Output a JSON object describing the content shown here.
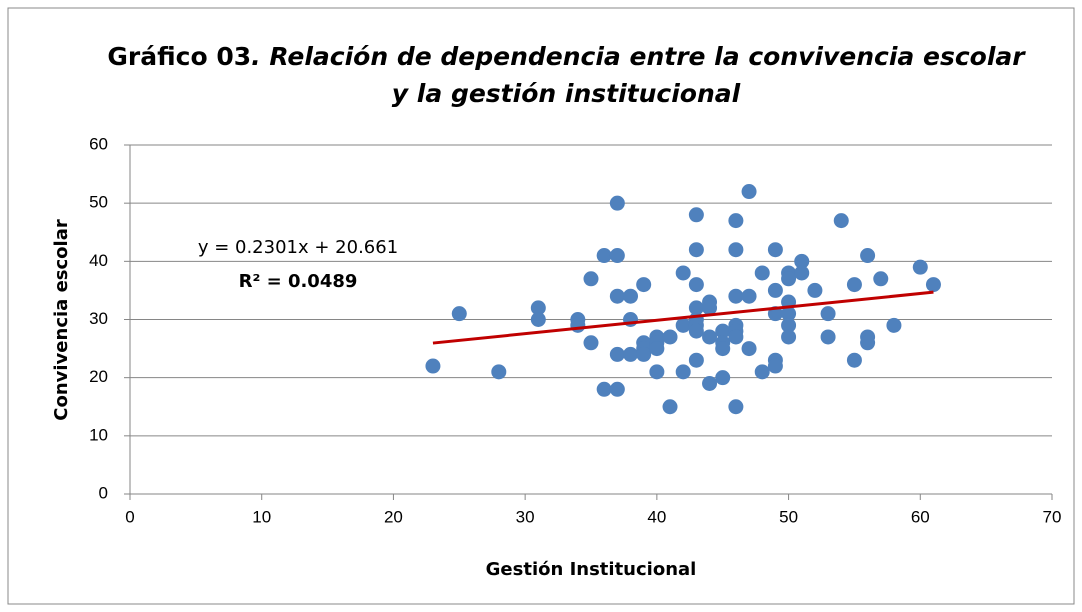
{
  "chart_data": {
    "type": "scatter",
    "title": [
      "Gráfico 03",
      ". Relación de dependencia entre la convivencia escolar",
      "y la gestión institucional"
    ],
    "xlabel": "Gestión Institucional",
    "ylabel": "Convivencia escolar",
    "xlim": [
      0,
      70
    ],
    "xticks": [
      0,
      10,
      20,
      30,
      40,
      50,
      60,
      70
    ],
    "ylim": [
      0,
      60
    ],
    "yticks": [
      0,
      10,
      20,
      30,
      40,
      50,
      60
    ],
    "grid": true,
    "series": [
      {
        "color": "#4f81bd",
        "x": [
          23,
          25,
          28,
          31,
          31,
          34,
          34,
          35,
          35,
          36,
          36,
          37,
          37,
          37,
          37,
          37,
          38,
          38,
          38,
          39,
          39,
          39,
          39,
          40,
          40,
          40,
          40,
          41,
          41,
          42,
          42,
          42,
          43,
          43,
          43,
          43,
          43,
          43,
          43,
          43,
          44,
          44,
          44,
          44,
          45,
          45,
          45,
          45,
          46,
          46,
          46,
          46,
          46,
          46,
          46,
          47,
          47,
          47,
          48,
          48,
          49,
          49,
          49,
          49,
          49,
          50,
          50,
          50,
          50,
          50,
          50,
          51,
          51,
          52,
          53,
          53,
          54,
          55,
          55,
          56,
          56,
          56,
          57,
          58,
          60,
          61
        ],
        "values": [
          22,
          31,
          21,
          32,
          30,
          30,
          29,
          37,
          26,
          41,
          18,
          41,
          50,
          34,
          24,
          18,
          34,
          30,
          24,
          36,
          26,
          25,
          24,
          27,
          26,
          25,
          21,
          27,
          15,
          38,
          29,
          21,
          48,
          42,
          36,
          32,
          30,
          29,
          28,
          23,
          33,
          32,
          27,
          19,
          28,
          26,
          25,
          20,
          47,
          42,
          34,
          29,
          28,
          27,
          15,
          52,
          34,
          25,
          38,
          21,
          42,
          35,
          31,
          23,
          22,
          38,
          37,
          33,
          31,
          29,
          27,
          40,
          38,
          35,
          31,
          27,
          47,
          36,
          23,
          41,
          27,
          26,
          37,
          29,
          39,
          36
        ]
      }
    ],
    "trendline": {
      "color": "#c00000",
      "x": [
        23,
        61
      ],
      "values": [
        25.95,
        34.7
      ],
      "labels": [
        "y = 0.2301x + 20.661",
        "R² = 0.0489"
      ]
    }
  }
}
